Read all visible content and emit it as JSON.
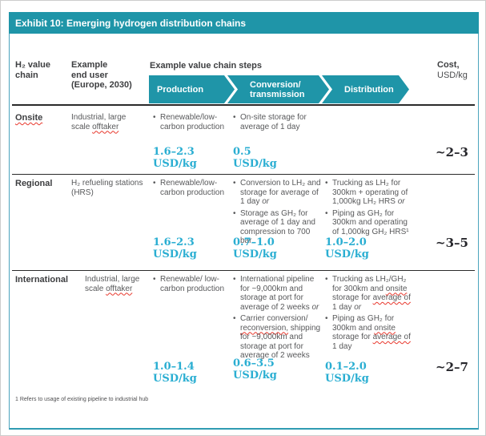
{
  "banner": {
    "title": "Exhibit 10: Emerging hydrogen distribution chains"
  },
  "header": {
    "chain_lines": [
      "H₂ value",
      "chain"
    ],
    "end_user_lines": [
      "Example",
      "end user",
      "(Europe, 2030)"
    ],
    "steps_label": "Example value chain steps",
    "cost_lines": [
      "Cost,",
      "USD/kg"
    ]
  },
  "chevrons": [
    {
      "label_lines": [
        "Production"
      ]
    },
    {
      "label_lines": [
        "Conversion/",
        "transmission"
      ]
    },
    {
      "label_lines": [
        "Distribution"
      ]
    }
  ],
  "rows": [
    {
      "chain": [
        {
          "t": "Onsite",
          "w": true
        }
      ],
      "end_user": [
        {
          "t": "Industrial, large scale "
        },
        {
          "t": "offtaker",
          "w": true
        }
      ],
      "production": {
        "bullets": [
          [
            {
              "t": "Renewable/low-carbon production"
            }
          ]
        ],
        "value_lines": [
          "1.6–2.3",
          "USD/kg"
        ]
      },
      "conversion": {
        "bullets": [
          [
            {
              "t": "On-site storage for average of 1 day"
            }
          ]
        ],
        "value_lines": [
          "0.5",
          "USD/kg"
        ]
      },
      "distribution": {
        "bullets": [],
        "value_lines": []
      },
      "cost": "~2–3"
    },
    {
      "chain": [
        {
          "t": "Regional"
        }
      ],
      "end_user": [
        {
          "t": "H₂ refueling stations (HRS)"
        }
      ],
      "production": {
        "bullets": [
          [
            {
              "t": "Renewable/low-carbon production"
            }
          ]
        ],
        "value_lines": [
          "1.6–2.3",
          "USD/kg"
        ]
      },
      "conversion": {
        "bullets": [
          [
            {
              "t": "Conversion to LH₂ and storage for average of 1 day "
            },
            {
              "t": "or",
              "i": true
            }
          ],
          [
            {
              "t": "Storage as GH₂ for average of 1 day and compression to 700 bar"
            }
          ]
        ],
        "value_lines": [
          "0.7–1.0",
          "USD/kg"
        ]
      },
      "distribution": {
        "bullets": [
          [
            {
              "t": "Trucking as LH₂ for 300km + operating of 1,000kg LH₂ HRS "
            },
            {
              "t": "or",
              "i": true
            }
          ],
          [
            {
              "t": "Piping as GH₂ for 300km and operating of 1,000kg GH₂ HRS¹"
            }
          ]
        ],
        "value_lines": [
          "1.0–2.0",
          "USD/kg"
        ]
      },
      "cost": "~3–5"
    },
    {
      "chain": [
        {
          "t": "International"
        }
      ],
      "end_user": [
        {
          "t": "Industrial, large scale "
        },
        {
          "t": "offtaker",
          "w": true
        }
      ],
      "production": {
        "bullets": [
          [
            {
              "t": "Renewable/ low-carbon production"
            }
          ]
        ],
        "value_lines": [
          "1.0–1.4",
          "USD/kg"
        ]
      },
      "conversion": {
        "bullets": [
          [
            {
              "t": "International pipeline for ~9,000km and storage at port for average of 2 weeks "
            },
            {
              "t": "or",
              "i": true
            }
          ],
          [
            {
              "t": "Carrier conversion/ "
            },
            {
              "t": "reconversion,",
              "w": true
            },
            {
              "t": " shipping for ~9,000km and storage at port for average of 2 weeks"
            }
          ]
        ],
        "value_lines": [
          "0.6–3.5",
          "USD/kg"
        ]
      },
      "distribution": {
        "bullets": [
          [
            {
              "t": "Trucking as LH₂/GH₂ for 300km and "
            },
            {
              "t": "onsite",
              "w": true
            },
            {
              "t": " storage for "
            },
            {
              "t": "average of",
              "w": true
            },
            {
              "t": " 1 day "
            },
            {
              "t": "or",
              "i": true
            }
          ],
          [
            {
              "t": "Piping as GH₂ for 300km and "
            },
            {
              "t": "onsite",
              "w": true
            },
            {
              "t": " storage for "
            },
            {
              "t": "average of",
              "w": true
            },
            {
              "t": " 1 day"
            }
          ]
        ],
        "value_lines": [
          "0.1–2.0",
          "USD/kg"
        ]
      },
      "cost": "~2–7"
    }
  ],
  "footnote": "1 Refers to usage of existing pipeline to industrial hub",
  "ui": {
    "bullet": "•"
  },
  "colors": {
    "teal": "#1f95a8",
    "value_cyan": "#2aaed2",
    "body_gray": "#58595b",
    "squiggle_red": "#e8372c"
  }
}
